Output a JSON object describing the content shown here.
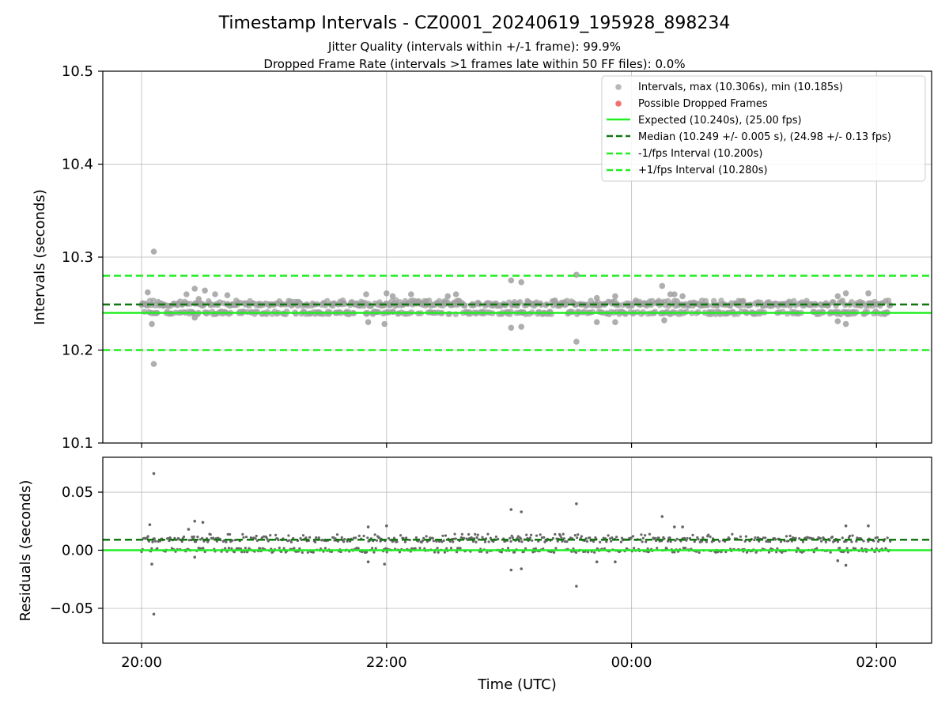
{
  "title": "Timestamp Intervals - CZ0001_20240619_195928_898234",
  "subtitle_line1": "Jitter Quality (intervals within +/-1 frame): 99.9%",
  "subtitle_line2": "Dropped Frame Rate (intervals >1 frames late within 50 FF files): 0.0%",
  "colors": {
    "intervals": "#a0a0a0",
    "dropped": "#f06060",
    "expected": "#22ee22",
    "median": "#117711",
    "fps_bounds": "#22ee22",
    "residuals": "#666666"
  },
  "chart_data": [
    {
      "type": "scatter",
      "name": "intervals",
      "ylabel": "Intervals (seconds)",
      "xlabel": "",
      "ylim": [
        10.1,
        10.5
      ],
      "yticks": [
        "10.1",
        "10.2",
        "10.3",
        "10.4",
        "10.5"
      ],
      "grid": true,
      "legend_position": "top-right",
      "legend": [
        {
          "label": "Intervals, max (10.306s), min (10.185s)",
          "kind": "marker",
          "color": "#a0a0a0"
        },
        {
          "label": "Possible Dropped Frames",
          "kind": "marker",
          "color": "#f06060"
        },
        {
          "label": "Expected (10.240s), (25.00 fps)",
          "kind": "solid",
          "color": "#22ee22"
        },
        {
          "label": "Median (10.249 +/- 0.005 s), (24.98 +/- 0.13 fps)",
          "kind": "dashed",
          "color": "#117711"
        },
        {
          "label": "-1/fps Interval (10.200s)",
          "kind": "dashed",
          "color": "#22ee22"
        },
        {
          "label": "+1/fps Interval (10.280s)",
          "kind": "dashed",
          "color": "#22ee22"
        }
      ],
      "reference_lines": {
        "expected": 10.24,
        "median": 10.249,
        "minus_1_fps": 10.2,
        "plus_1_fps": 10.28
      },
      "bands": [
        10.24,
        10.249,
        10.252
      ],
      "outliers": [
        {
          "x": "20:06",
          "y": 10.306
        },
        {
          "x": "20:06",
          "y": 10.185
        },
        {
          "x": "20:05",
          "y": 10.228
        },
        {
          "x": "20:03",
          "y": 10.262
        },
        {
          "x": "20:26",
          "y": 10.266
        },
        {
          "x": "20:31",
          "y": 10.264
        },
        {
          "x": "20:22",
          "y": 10.26
        },
        {
          "x": "20:28",
          "y": 10.255
        },
        {
          "x": "20:26",
          "y": 10.235
        },
        {
          "x": "20:36",
          "y": 10.26
        },
        {
          "x": "20:42",
          "y": 10.259
        },
        {
          "x": "21:50",
          "y": 10.26
        },
        {
          "x": "21:51",
          "y": 10.23
        },
        {
          "x": "22:00",
          "y": 10.261
        },
        {
          "x": "21:59",
          "y": 10.228
        },
        {
          "x": "22:03",
          "y": 10.258
        },
        {
          "x": "22:12",
          "y": 10.26
        },
        {
          "x": "22:30",
          "y": 10.258
        },
        {
          "x": "22:34",
          "y": 10.26
        },
        {
          "x": "23:01",
          "y": 10.275
        },
        {
          "x": "23:06",
          "y": 10.273
        },
        {
          "x": "23:01",
          "y": 10.224
        },
        {
          "x": "23:06",
          "y": 10.225
        },
        {
          "x": "23:33",
          "y": 10.281
        },
        {
          "x": "23:33",
          "y": 10.209
        },
        {
          "x": "23:43",
          "y": 10.256
        },
        {
          "x": "23:43",
          "y": 10.23
        },
        {
          "x": "23:52",
          "y": 10.258
        },
        {
          "x": "23:52",
          "y": 10.23
        },
        {
          "x": "00:15",
          "y": 10.269
        },
        {
          "x": "00:16",
          "y": 10.232
        },
        {
          "x": "00:19",
          "y": 10.26
        },
        {
          "x": "00:21",
          "y": 10.26
        },
        {
          "x": "00:25",
          "y": 10.258
        },
        {
          "x": "01:41",
          "y": 10.258
        },
        {
          "x": "01:41",
          "y": 10.231
        },
        {
          "x": "01:45",
          "y": 10.261
        },
        {
          "x": "01:45",
          "y": 10.228
        },
        {
          "x": "01:56",
          "y": 10.261
        }
      ]
    },
    {
      "type": "scatter",
      "name": "residuals",
      "ylabel": "Residuals (seconds)",
      "xlabel": "Time (UTC)",
      "ylim": [
        -0.08,
        0.08
      ],
      "yticks": [
        "−0.05",
        "0.00",
        "0.05"
      ],
      "xticks": [
        "20:00",
        "22:00",
        "00:00",
        "02:00"
      ],
      "xlim": [
        "19:41",
        "02:27"
      ],
      "grid": true,
      "reference_lines": {
        "zero": 0.0,
        "median_offset": 0.009
      },
      "bands": [
        0.0,
        0.009,
        0.012
      ],
      "outliers": [
        {
          "x": "20:06",
          "y": 0.066
        },
        {
          "x": "20:06",
          "y": -0.055
        },
        {
          "x": "20:05",
          "y": -0.012
        },
        {
          "x": "20:04",
          "y": 0.022
        },
        {
          "x": "20:26",
          "y": 0.025
        },
        {
          "x": "20:30",
          "y": 0.024
        },
        {
          "x": "20:23",
          "y": 0.018
        },
        {
          "x": "20:26",
          "y": -0.006
        },
        {
          "x": "21:51",
          "y": 0.02
        },
        {
          "x": "21:51",
          "y": -0.01
        },
        {
          "x": "22:00",
          "y": 0.021
        },
        {
          "x": "21:59",
          "y": -0.012
        },
        {
          "x": "23:01",
          "y": 0.035
        },
        {
          "x": "23:06",
          "y": 0.033
        },
        {
          "x": "23:01",
          "y": -0.017
        },
        {
          "x": "23:06",
          "y": -0.016
        },
        {
          "x": "23:33",
          "y": 0.04
        },
        {
          "x": "23:33",
          "y": -0.031
        },
        {
          "x": "23:43",
          "y": -0.01
        },
        {
          "x": "23:52",
          "y": -0.01
        },
        {
          "x": "00:15",
          "y": 0.029
        },
        {
          "x": "00:21",
          "y": 0.02
        },
        {
          "x": "00:25",
          "y": 0.02
        },
        {
          "x": "01:41",
          "y": -0.009
        },
        {
          "x": "01:45",
          "y": 0.021
        },
        {
          "x": "01:45",
          "y": -0.013
        },
        {
          "x": "01:56",
          "y": 0.021
        }
      ]
    }
  ],
  "x_axis": {
    "time_range": [
      "20:00",
      "02:07"
    ]
  }
}
